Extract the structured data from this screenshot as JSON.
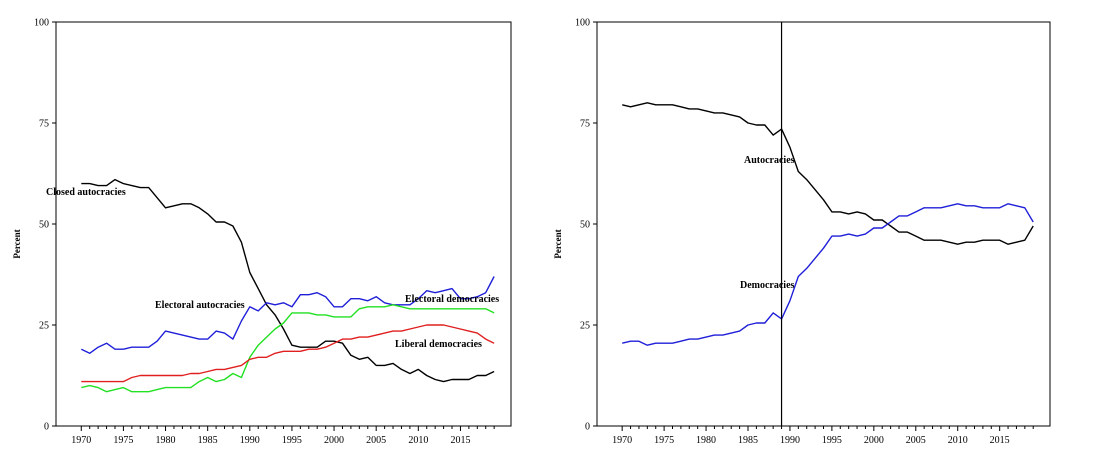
{
  "chart_data": [
    {
      "type": "line",
      "title": "",
      "xlabel": "",
      "ylabel": "Percent",
      "xlim": [
        1967,
        2021
      ],
      "ylim": [
        0,
        100
      ],
      "x_ticks": [
        1970,
        1975,
        1980,
        1985,
        1990,
        1995,
        2000,
        2005,
        2010,
        2015
      ],
      "y_ticks": [
        0,
        25,
        50,
        75,
        100
      ],
      "grid": false,
      "legend": "none (series labelled inline)",
      "x": [
        1970,
        1971,
        1972,
        1973,
        1974,
        1975,
        1976,
        1977,
        1978,
        1979,
        1980,
        1981,
        1982,
        1983,
        1984,
        1985,
        1986,
        1987,
        1988,
        1989,
        1990,
        1991,
        1992,
        1993,
        1994,
        1995,
        1996,
        1997,
        1998,
        1999,
        2000,
        2001,
        2002,
        2003,
        2004,
        2005,
        2006,
        2007,
        2008,
        2009,
        2010,
        2011,
        2012,
        2013,
        2014,
        2015,
        2016,
        2017,
        2018,
        2019
      ],
      "series": [
        {
          "name": "Closed autocracies",
          "color": "#000000",
          "values": [
            60,
            60,
            59.5,
            59.5,
            61,
            60,
            59.5,
            59,
            59,
            56.5,
            54,
            54.5,
            55,
            55,
            54,
            52.5,
            50.5,
            50.5,
            49.5,
            45.5,
            38,
            34,
            30,
            27.5,
            24,
            20,
            19.5,
            19.5,
            19.5,
            21,
            21,
            20.5,
            17.5,
            16.5,
            17,
            15,
            15,
            15.5,
            14,
            13,
            14,
            12.5,
            11.5,
            11,
            11.5,
            11.5,
            11.5,
            12.5,
            12.5,
            13.5
          ]
        },
        {
          "name": "Electoral autocracies",
          "color": "#1f1fd9",
          "values": [
            19,
            18,
            19.5,
            20.5,
            19,
            19,
            19.5,
            19.5,
            19.5,
            21,
            23.5,
            23,
            22.5,
            22,
            21.5,
            21.5,
            23.5,
            23,
            21.5,
            26,
            29.5,
            28.5,
            30.5,
            30,
            30.5,
            29.5,
            32.5,
            32.5,
            33,
            32,
            29.5,
            29.5,
            31.5,
            31.5,
            31,
            32,
            30.5,
            30,
            30,
            30,
            31.5,
            33.5,
            33,
            33.5,
            34,
            31.5,
            31.5,
            32,
            33,
            37
          ]
        },
        {
          "name": "Electoral democracies",
          "color": "#22e022",
          "values": [
            9.5,
            10,
            9.5,
            8.5,
            9,
            9.5,
            8.5,
            8.5,
            8.5,
            9,
            9.5,
            9.5,
            9.5,
            9.5,
            11,
            12,
            11,
            11.5,
            13,
            12,
            17,
            20,
            22,
            24,
            25.5,
            28,
            28,
            28,
            27.5,
            27.5,
            27,
            27,
            27,
            29,
            29.5,
            29.5,
            29.5,
            30,
            29.5,
            29,
            29,
            29,
            29,
            29,
            29,
            29,
            29,
            29,
            29,
            28
          ]
        },
        {
          "name": "Liberal democracies",
          "color": "#e01f1f",
          "values": [
            11,
            11,
            11,
            11,
            11,
            11,
            12,
            12.5,
            12.5,
            12.5,
            12.5,
            12.5,
            12.5,
            13,
            13,
            13.5,
            14,
            14,
            14.5,
            15,
            16.5,
            17,
            17,
            18,
            18.5,
            18.5,
            18.5,
            19,
            19,
            19.5,
            20.5,
            21.5,
            21.5,
            22,
            22,
            22.5,
            23,
            23.5,
            23.5,
            24,
            24.5,
            25,
            25,
            25,
            24.5,
            24,
            23.5,
            23,
            21.5,
            20.5
          ]
        }
      ],
      "annotations": [
        "Closed autocracies",
        "Electoral autocracies",
        "Electoral democracies",
        "Liberal democracies"
      ]
    },
    {
      "type": "line",
      "title": "",
      "xlabel": "",
      "ylabel": "Percent",
      "xlim": [
        1967,
        2021
      ],
      "ylim": [
        0,
        100
      ],
      "x_ticks": [
        1970,
        1975,
        1980,
        1985,
        1990,
        1995,
        2000,
        2005,
        2010,
        2015
      ],
      "y_ticks": [
        0,
        25,
        50,
        75,
        100
      ],
      "grid": false,
      "legend": "none (series labelled inline)",
      "vertical_line_at": 1989,
      "x": [
        1970,
        1971,
        1972,
        1973,
        1974,
        1975,
        1976,
        1977,
        1978,
        1979,
        1980,
        1981,
        1982,
        1983,
        1984,
        1985,
        1986,
        1987,
        1988,
        1989,
        1990,
        1991,
        1992,
        1993,
        1994,
        1995,
        1996,
        1997,
        1998,
        1999,
        2000,
        2001,
        2002,
        2003,
        2004,
        2005,
        2006,
        2007,
        2008,
        2009,
        2010,
        2011,
        2012,
        2013,
        2014,
        2015,
        2016,
        2017,
        2018,
        2019
      ],
      "series": [
        {
          "name": "Autocracies",
          "color": "#000000",
          "values": [
            79.5,
            79,
            79.5,
            80,
            79.5,
            79.5,
            79.5,
            79,
            78.5,
            78.5,
            78,
            77.5,
            77.5,
            77,
            76.5,
            75,
            74.5,
            74.5,
            72,
            73.5,
            69,
            63,
            61,
            58.5,
            56,
            53,
            53,
            52.5,
            53,
            52.5,
            51,
            51,
            49.5,
            48,
            48,
            47,
            46,
            46,
            46,
            45.5,
            45,
            45.5,
            45.5,
            46,
            46,
            46,
            45,
            45.5,
            46,
            49.5
          ]
        },
        {
          "name": "Democracies",
          "color": "#1f1fd9",
          "values": [
            20.5,
            21,
            21,
            20,
            20.5,
            20.5,
            20.5,
            21,
            21.5,
            21.5,
            22,
            22.5,
            22.5,
            23,
            23.5,
            25,
            25.5,
            25.5,
            28,
            26.5,
            31,
            37,
            39,
            41.5,
            44,
            47,
            47,
            47.5,
            47,
            47.5,
            49,
            49,
            50.5,
            52,
            52,
            53,
            54,
            54,
            54,
            54.5,
            55,
            54.5,
            54.5,
            54,
            54,
            54,
            55,
            54.5,
            54,
            50.5
          ]
        }
      ],
      "annotations": [
        "Autocracies",
        "Democracies"
      ]
    }
  ]
}
